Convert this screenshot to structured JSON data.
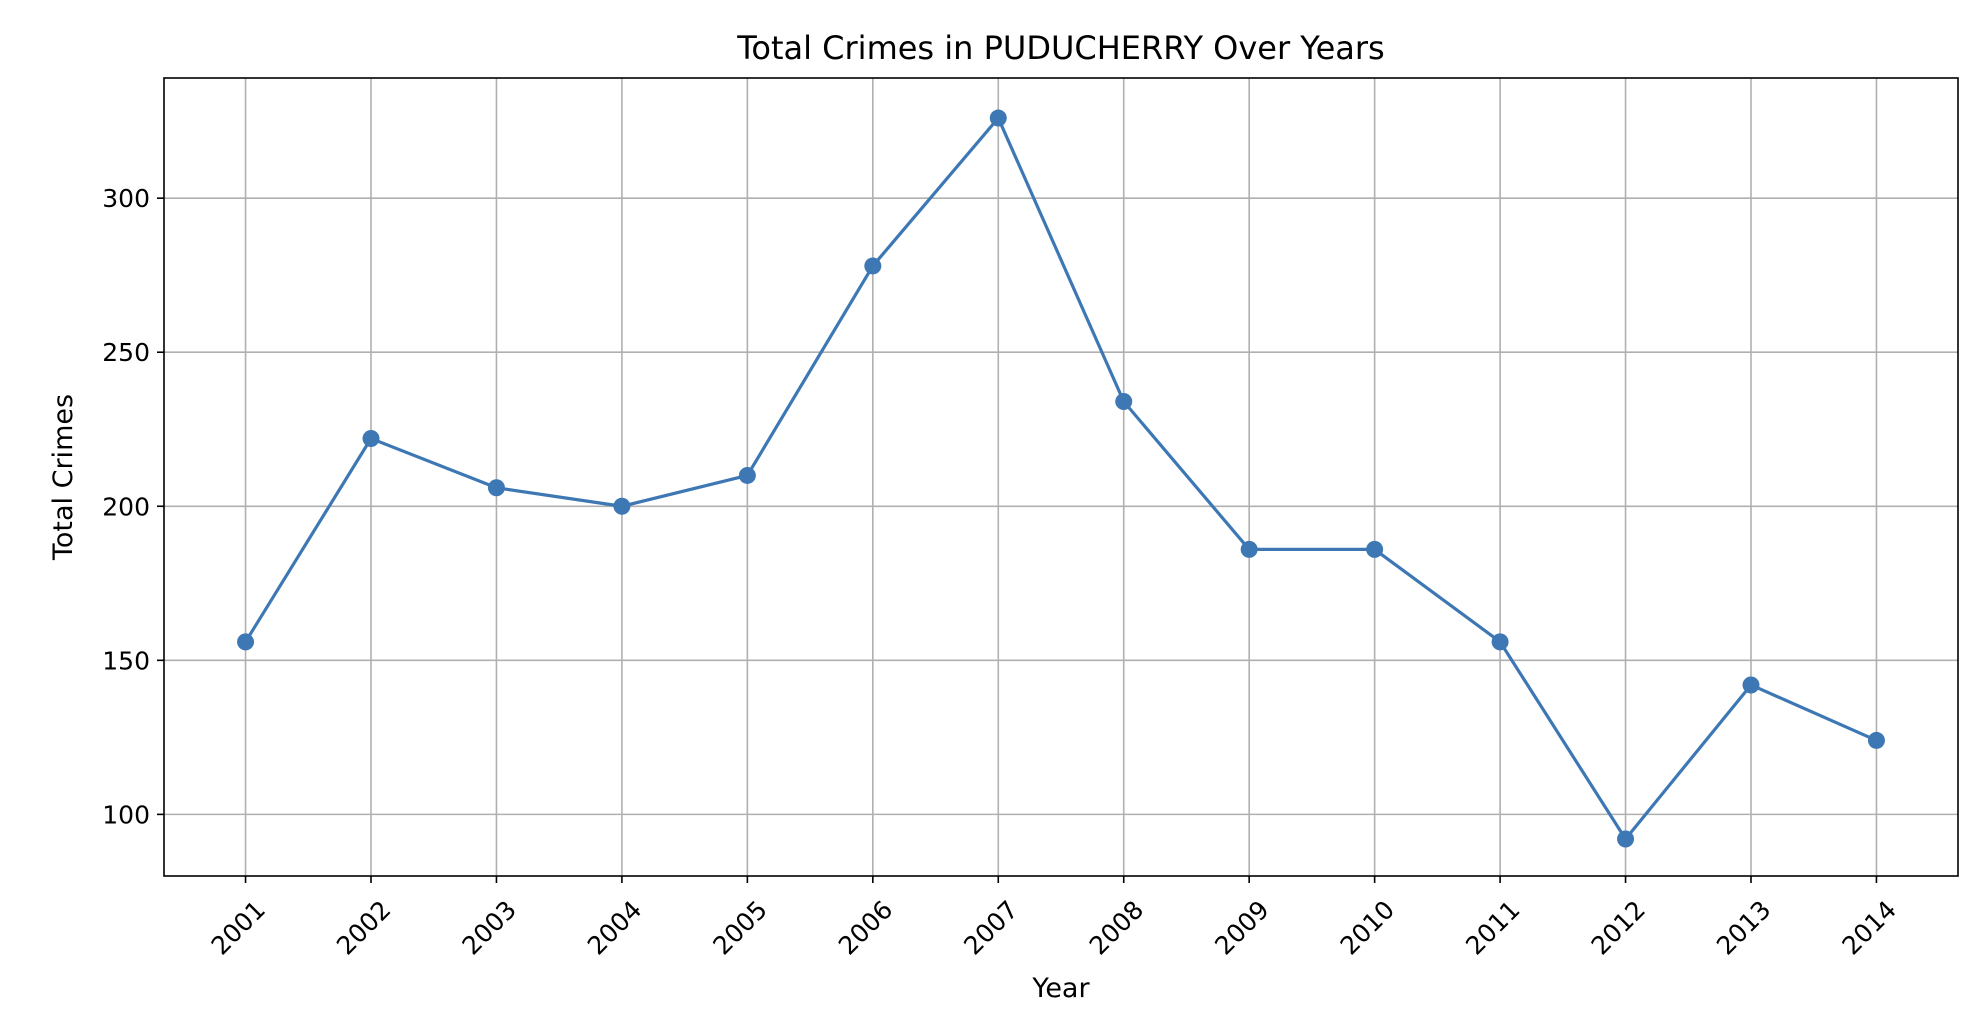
{
  "chart_data": {
    "type": "line",
    "title": "Total Crimes in PUDUCHERRY Over Years",
    "xlabel": "Year",
    "ylabel": "Total Crimes",
    "categories": [
      "2001",
      "2002",
      "2003",
      "2004",
      "2005",
      "2006",
      "2007",
      "2008",
      "2009",
      "2010",
      "2011",
      "2012",
      "2013",
      "2014"
    ],
    "series": [
      {
        "values": [
          156,
          222,
          206,
          200,
          210,
          278,
          326,
          234,
          186,
          186,
          156,
          92,
          142,
          124
        ],
        "color": "#3d78b4"
      }
    ],
    "yticks": [
      100,
      150,
      200,
      250,
      300
    ],
    "ylim": [
      80,
      339
    ],
    "grid": true,
    "marker": "circle",
    "xtick_rotation": "45"
  }
}
